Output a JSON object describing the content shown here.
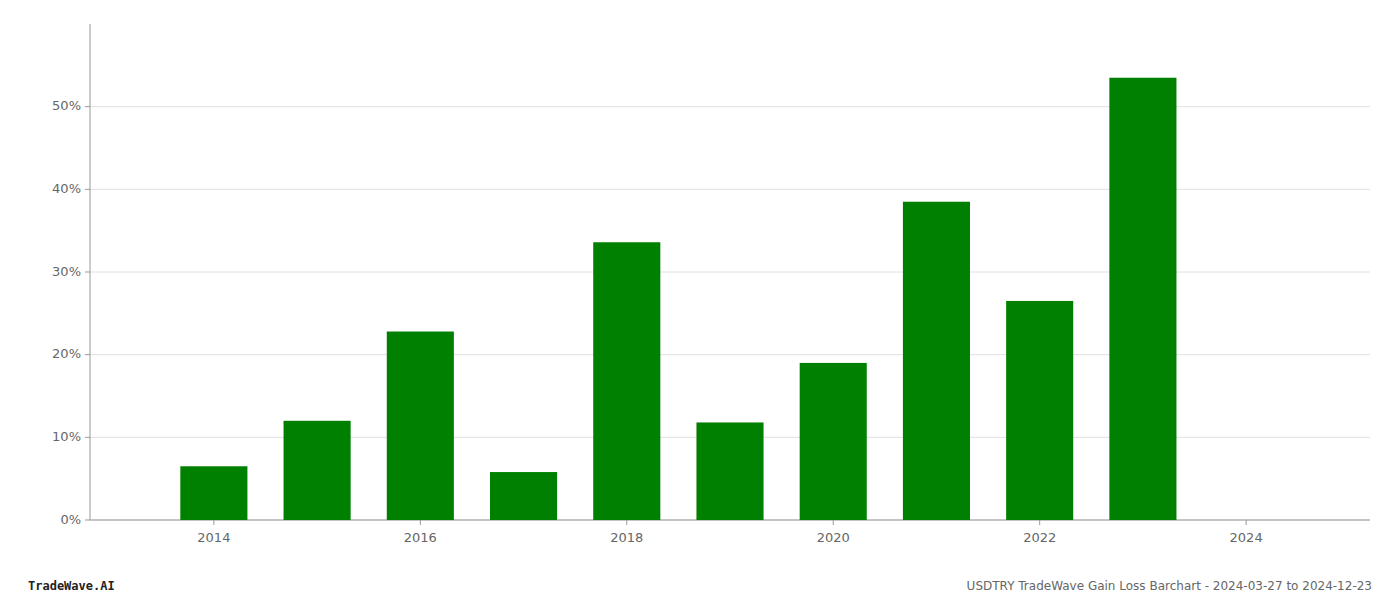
{
  "chart_data": {
    "type": "bar",
    "x": [
      2014,
      2015,
      2016,
      2017,
      2018,
      2019,
      2020,
      2021,
      2022,
      2023
    ],
    "values": [
      0.065,
      0.12,
      0.228,
      0.058,
      0.336,
      0.118,
      0.19,
      0.385,
      0.265,
      0.535
    ],
    "color": "#008000",
    "xlim": [
      2012.8,
      2025.2
    ],
    "xticks": [
      2014,
      2016,
      2018,
      2020,
      2022,
      2024
    ],
    "ylim": [
      0,
      0.6
    ],
    "yticks": [
      {
        "value": 0.0,
        "label": "0%"
      },
      {
        "value": 0.1,
        "label": "10%"
      },
      {
        "value": 0.2,
        "label": "20%"
      },
      {
        "value": 0.3,
        "label": "30%"
      },
      {
        "value": 0.4,
        "label": "40%"
      },
      {
        "value": 0.5,
        "label": "50%"
      }
    ],
    "grid": true,
    "annotations": [
      "TradeWave.AI",
      "USDTRY TradeWave Gain Loss Barchart - 2024-03-27 to 2024-12-23"
    ]
  }
}
